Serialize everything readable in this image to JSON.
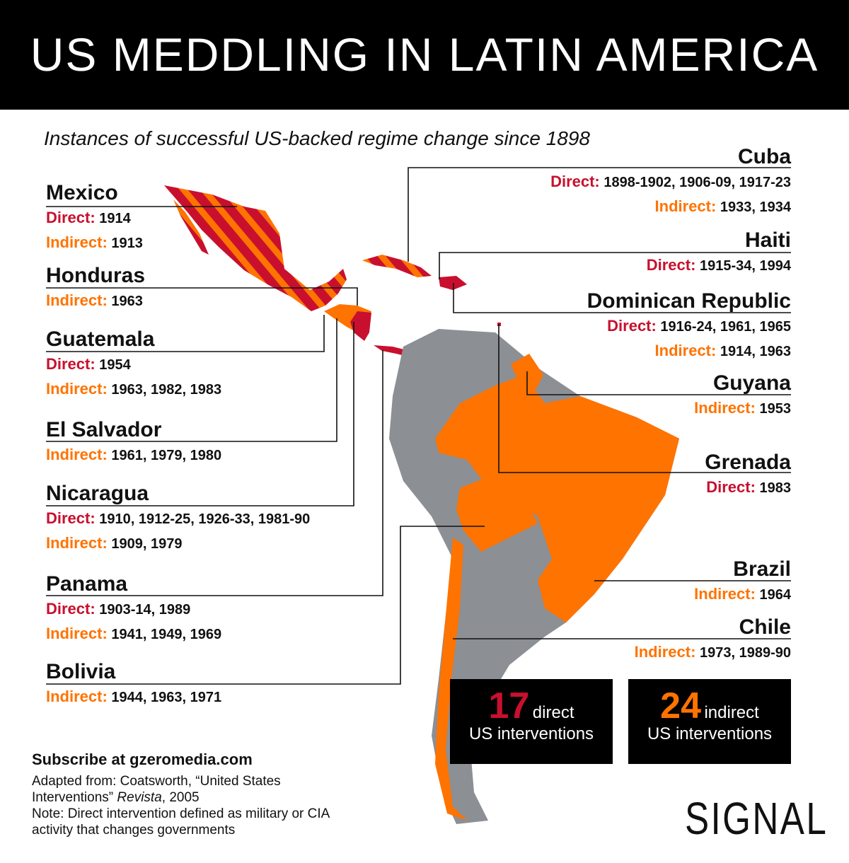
{
  "header": {
    "title": "US MEDDLING IN LATIN AMERICA",
    "subtitle": "Instances of successful US-backed regime change since 1898"
  },
  "countries": [
    {
      "name": "Mexico",
      "lines": [
        {
          "label": "Direct:",
          "years": "1914",
          "color": "#c8102e"
        },
        {
          "label": "Indirect:",
          "years": "1913",
          "color": "#ff7300"
        }
      ]
    },
    {
      "name": "Honduras",
      "lines": [
        {
          "label": "Indirect:",
          "years": "1963",
          "color": "#ff7300"
        }
      ]
    },
    {
      "name": "Guatemala",
      "lines": [
        {
          "label": "Direct:",
          "years": "1954",
          "color": "#c8102e"
        },
        {
          "label": "Indirect:",
          "years": "1963, 1982, 1983",
          "color": "#ff7300"
        }
      ]
    },
    {
      "name": "El Salvador",
      "lines": [
        {
          "label": "Indirect:",
          "years": "1961, 1979, 1980",
          "color": "#ff7300"
        }
      ]
    },
    {
      "name": "Nicaragua",
      "lines": [
        {
          "label": "Direct:",
          "years": "1910, 1912-25, 1926-33, 1981-90",
          "color": "#c8102e"
        },
        {
          "label": "Indirect:",
          "years": "1909, 1979",
          "color": "#ff7300"
        }
      ]
    },
    {
      "name": "Panama",
      "lines": [
        {
          "label": "Direct:",
          "years": "1903-14, 1989",
          "color": "#c8102e"
        },
        {
          "label": "Indirect:",
          "years": "1941, 1949, 1969",
          "color": "#ff7300"
        }
      ]
    },
    {
      "name": "Bolivia",
      "lines": [
        {
          "label": "Indirect:",
          "years": "1944, 1963, 1971",
          "color": "#ff7300"
        }
      ]
    },
    {
      "name": "Cuba",
      "lines": [
        {
          "label": "Direct:",
          "years": "1898-1902, 1906-09, 1917-23",
          "color": "#c8102e"
        },
        {
          "label": "Indirect:",
          "years": "1933, 1934",
          "color": "#ff7300"
        }
      ]
    },
    {
      "name": "Haiti",
      "lines": [
        {
          "label": "Direct:",
          "years": "1915-34, 1994",
          "color": "#c8102e"
        }
      ]
    },
    {
      "name": "Dominican Republic",
      "lines": [
        {
          "label": "Direct:",
          "years": "1916-24, 1961, 1965",
          "color": "#c8102e"
        },
        {
          "label": "Indirect:",
          "years": "1914, 1963",
          "color": "#ff7300"
        }
      ]
    },
    {
      "name": "Guyana",
      "lines": [
        {
          "label": "Indirect:",
          "years": "1953",
          "color": "#ff7300"
        }
      ]
    },
    {
      "name": "Grenada",
      "lines": [
        {
          "label": "Direct:",
          "years": "1983",
          "color": "#c8102e"
        }
      ]
    },
    {
      "name": "Brazil",
      "lines": [
        {
          "label": "Indirect:",
          "years": "1964",
          "color": "#ff7300"
        }
      ]
    },
    {
      "name": "Chile",
      "lines": [
        {
          "label": "Indirect:",
          "years": "1973, 1989-90",
          "color": "#ff7300"
        }
      ]
    }
  ],
  "totals": [
    {
      "number": 17,
      "word": "direct",
      "text": "US interventions",
      "color": "#c8102e"
    },
    {
      "number": 24,
      "word": "indirect",
      "text": "US interventions",
      "color": "#ff7300"
    }
  ],
  "footer": {
    "subscribe": "Subscribe at gzeromedia.com",
    "source_prefix": "Adapted from: Coatsworth, “United States Interventions” ",
    "source_italic": "Revista",
    "source_suffix": ", 2005",
    "note": "Note: Direct intervention defined as military or CIA activity that changes governments"
  },
  "logo": "SIGNAL"
}
